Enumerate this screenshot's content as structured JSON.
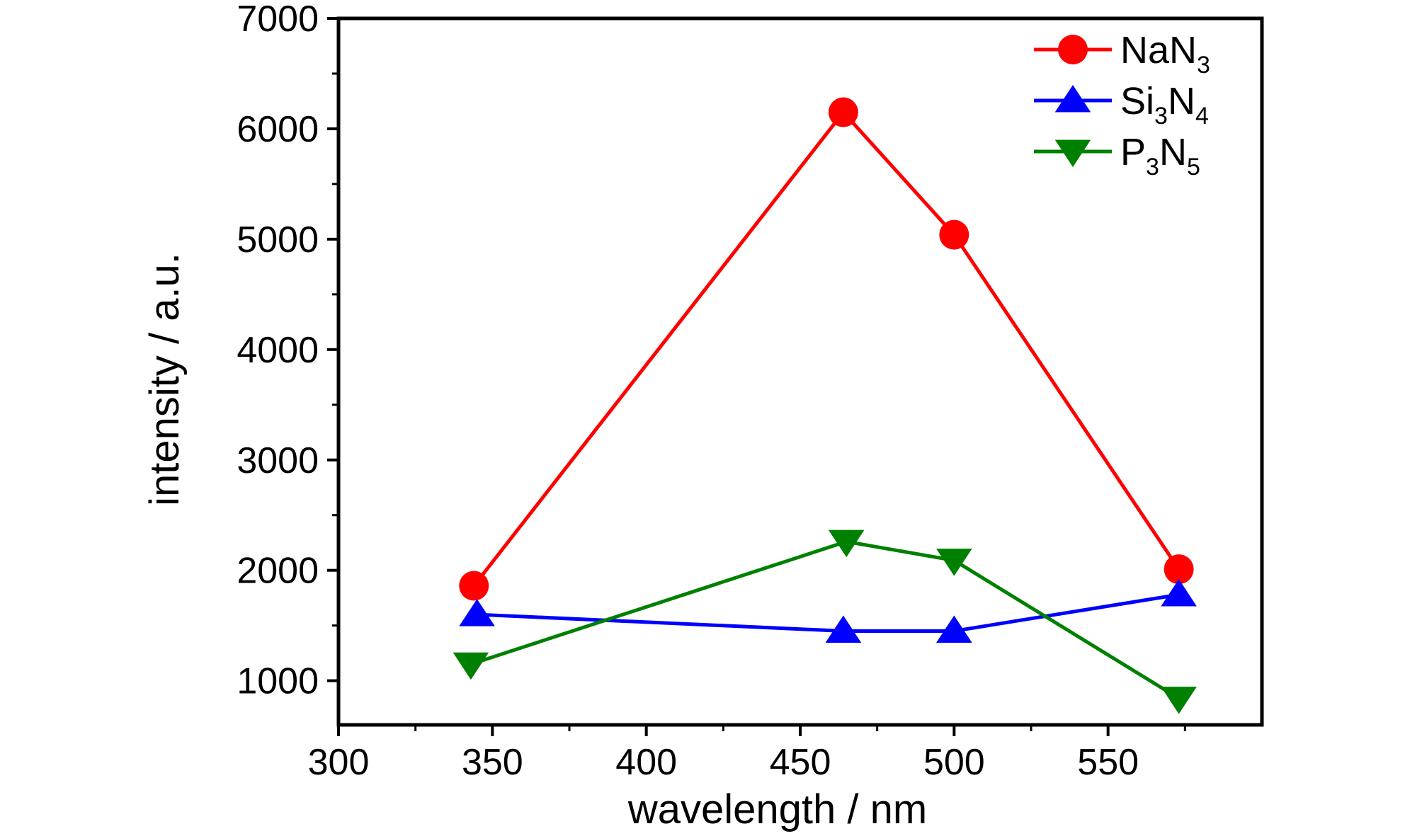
{
  "chart_data": {
    "type": "line",
    "xlabel": "wavelength / nm",
    "ylabel": "intensity / a.u.",
    "xlim": [
      300,
      600
    ],
    "ylim": [
      600,
      7000
    ],
    "x_ticks": [
      300,
      350,
      400,
      450,
      500,
      550
    ],
    "y_ticks": [
      1000,
      2000,
      3000,
      4000,
      5000,
      6000,
      7000
    ],
    "legend_position": "top-right",
    "series": [
      {
        "name": "NaN3",
        "name_parts": [
          {
            "text": "NaN"
          },
          {
            "text": "3",
            "sub": true
          }
        ],
        "marker": "circle",
        "color": "#ff0000",
        "x": [
          344,
          464,
          500,
          573
        ],
        "y": [
          1860,
          6150,
          5040,
          2010
        ]
      },
      {
        "name": "Si3N4",
        "name_parts": [
          {
            "text": "Si"
          },
          {
            "text": "3",
            "sub": true
          },
          {
            "text": "N"
          },
          {
            "text": "4",
            "sub": true
          }
        ],
        "marker": "triangle-up",
        "color": "#0000ff",
        "x": [
          345,
          464,
          500,
          573
        ],
        "y": [
          1600,
          1450,
          1450,
          1780
        ]
      },
      {
        "name": "P3N5",
        "name_parts": [
          {
            "text": "P"
          },
          {
            "text": "3",
            "sub": true
          },
          {
            "text": "N"
          },
          {
            "text": "5",
            "sub": true
          }
        ],
        "marker": "triangle-down",
        "color": "#008000",
        "x": [
          343,
          465,
          500,
          573
        ],
        "y": [
          1150,
          2260,
          2090,
          840
        ]
      }
    ]
  }
}
